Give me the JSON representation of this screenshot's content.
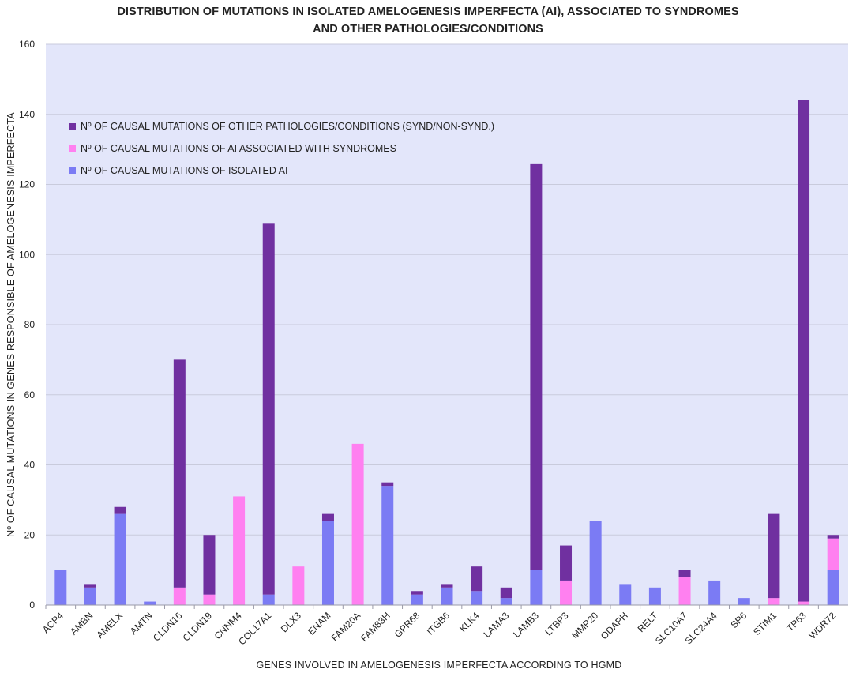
{
  "title_lines": [
    "DISTRIBUTION OF MUTATIONS IN ISOLATED AMELOGENESIS IMPERFECTA (AI), ASSOCIATED TO SYNDROMES",
    "AND OTHER PATHOLOGIES/CONDITIONS"
  ],
  "colors": {
    "plot_bg": "#e3e6fa",
    "grid": "#c9cbdc",
    "isolated": "#7b7bf4",
    "syndromes": "#ff80f0",
    "other": "#7030a0"
  },
  "chart_data": {
    "type": "bar",
    "stacked": true,
    "title": "DISTRIBUTION OF MUTATIONS IN ISOLATED AMELOGENESIS IMPERFECTA (AI), ASSOCIATED TO SYNDROMES AND OTHER PATHOLOGIES/CONDITIONS",
    "xlabel": "GENES INVOLVED IN AMELOGENESIS IMPERFECTA ACCORDING TO HGMD",
    "ylabel": "Nº OF CAUSAL MUTATIONS IN GENES RESPONSIBLE OF AMELOGENESIS IMPERFECTA",
    "ylim": [
      0,
      160
    ],
    "yticks": [
      0,
      20,
      40,
      60,
      80,
      100,
      120,
      140,
      160
    ],
    "grid": true,
    "legend_position": "top-left",
    "categories": [
      "ACP4",
      "AMBN",
      "AMELX",
      "AMTN",
      "CLDN16",
      "CLDN19",
      "CNNM4",
      "COL17A1",
      "DLX3",
      "ENAM",
      "FAM20A",
      "FAM83H",
      "GPR68",
      "ITGB6",
      "KLK4",
      "LAMA3",
      "LAMB3",
      "LTBP3",
      "MMP20",
      "ODAPH",
      "RELT",
      "SLC10A7",
      "SLC24A4",
      "SP6",
      "STIM1",
      "TP63",
      "WDR72"
    ],
    "series": [
      {
        "name": "Nº OF CAUSAL MUTATIONS OF ISOLATED AI",
        "key": "isolated",
        "values": [
          10,
          5,
          26,
          1,
          0,
          0,
          0,
          3,
          0,
          24,
          0,
          34,
          3,
          5,
          4,
          2,
          10,
          0,
          24,
          6,
          5,
          0,
          7,
          2,
          0,
          0,
          10
        ]
      },
      {
        "name": "Nº OF CAUSAL MUTATIONS OF AI ASSOCIATED WITH SYNDROMES",
        "key": "syndromes",
        "values": [
          0,
          0,
          0,
          0,
          5,
          3,
          31,
          0,
          11,
          0,
          46,
          0,
          0,
          0,
          0,
          0,
          0,
          7,
          0,
          0,
          0,
          8,
          0,
          0,
          2,
          1,
          9
        ]
      },
      {
        "name": "Nº OF CAUSAL MUTATIONS OF OTHER PATHOLOGIES/CONDITIONS (SYND/NON-SYND.)",
        "key": "other",
        "values": [
          0,
          1,
          2,
          0,
          65,
          17,
          0,
          106,
          0,
          2,
          0,
          1,
          1,
          1,
          7,
          3,
          116,
          10,
          0,
          0,
          0,
          2,
          0,
          0,
          24,
          143,
          1
        ]
      }
    ],
    "legend_order": [
      "other",
      "syndromes",
      "isolated"
    ]
  }
}
